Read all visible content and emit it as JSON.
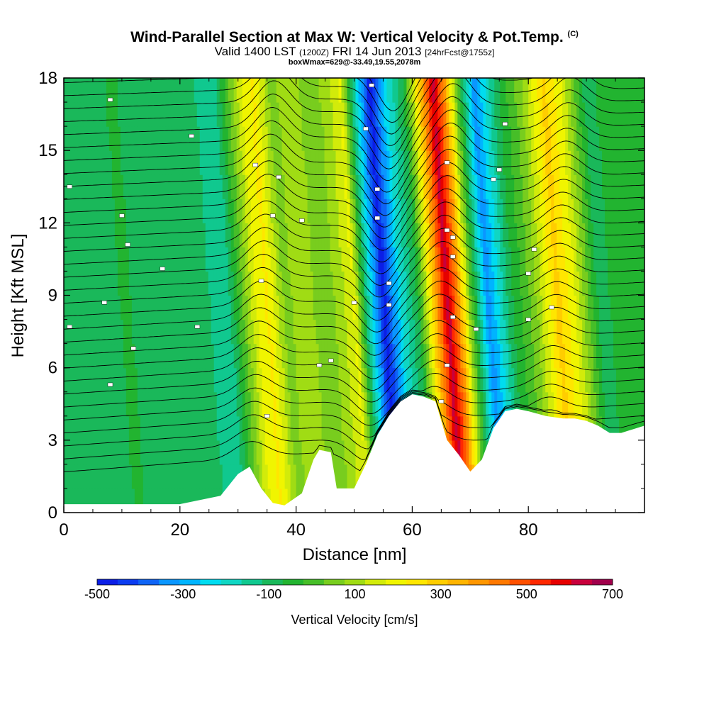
{
  "title": {
    "main": "Wind-Parallel Section at Max W: Vertical Velocity & Pot.Temp.",
    "copyright": "(C)",
    "valid_prefix": "Valid 1400 LST",
    "valid_utc": "(1200Z)",
    "valid_date": "FRI 14 Jun 2013",
    "forecast": "[24hrFcst@1755z]",
    "box_info": "boxWmax=629@-33.49,19.55,2078m"
  },
  "chart_data": {
    "type": "heatmap",
    "xlabel": "Distance [nm]",
    "ylabel": "Height [Kft MSL]",
    "xlim": [
      0,
      100
    ],
    "ylim": [
      0,
      18
    ],
    "xticks": [
      0,
      20,
      40,
      60,
      80
    ],
    "yticks": [
      0,
      3,
      6,
      9,
      12,
      15,
      18
    ],
    "colorbar": {
      "label": "Vertical Velocity [cm/s]",
      "ticks": [
        -500,
        -300,
        -100,
        100,
        300,
        500,
        700
      ],
      "min": -500,
      "max": 700,
      "step": 50,
      "colors": [
        "#0b1ee6",
        "#0b3cf0",
        "#0f64f5",
        "#0a96ff",
        "#00b4ff",
        "#00dcf0",
        "#10d6c3",
        "#10c88f",
        "#1ab85a",
        "#22b430",
        "#46be28",
        "#78cd1e",
        "#a0dc14",
        "#d2eb0a",
        "#f0f500",
        "#ffe600",
        "#ffcd00",
        "#ffb400",
        "#ff9600",
        "#ff7800",
        "#ff5000",
        "#ff2800",
        "#e60000",
        "#c8003c",
        "#a0004b"
      ]
    },
    "velocity_profile": {
      "x": [
        0,
        8,
        10,
        16,
        22,
        28,
        33,
        35,
        38,
        42,
        44,
        47,
        50,
        52,
        55,
        58,
        61,
        64,
        66,
        68,
        70,
        73,
        77,
        81,
        85,
        88,
        92,
        96,
        100
      ],
      "w": [
        -60,
        -90,
        -40,
        -80,
        -60,
        -140,
        200,
        260,
        80,
        150,
        50,
        110,
        210,
        -100,
        -480,
        -200,
        -40,
        380,
        680,
        420,
        60,
        -330,
        -60,
        80,
        320,
        200,
        -60,
        -40,
        -30
      ]
    },
    "terrain": {
      "x": [
        0,
        20,
        27,
        30,
        32,
        34,
        36,
        38,
        41,
        43,
        44,
        46,
        47,
        50,
        52,
        54,
        56,
        58,
        60,
        62,
        64,
        66,
        68,
        70,
        72,
        74,
        76,
        78,
        80,
        83,
        86,
        88,
        90,
        92,
        94,
        96,
        100
      ],
      "height_kft": [
        0.35,
        0.35,
        0.7,
        1.6,
        1.9,
        1.0,
        0.4,
        0.3,
        0.8,
        2.2,
        2.6,
        2.5,
        1.0,
        1.0,
        2.0,
        3.2,
        4.0,
        4.6,
        4.9,
        4.8,
        4.6,
        3.0,
        2.4,
        1.7,
        2.2,
        3.5,
        4.2,
        4.3,
        4.2,
        4.0,
        3.9,
        3.9,
        3.8,
        3.6,
        3.3,
        3.3,
        3.6
      ]
    },
    "contours": {
      "variable": "Potential Temperature",
      "count": 32,
      "wave_centers_nm": [
        34,
        54,
        65,
        85
      ],
      "wave_amplitudes_kft": [
        0.9,
        -1.3,
        1.0,
        0.7
      ]
    },
    "contour_labels": [
      {
        "x": 8,
        "y": 17.1
      },
      {
        "x": 22,
        "y": 15.6
      },
      {
        "x": 33,
        "y": 14.4
      },
      {
        "x": 37,
        "y": 13.9
      },
      {
        "x": 1,
        "y": 13.5
      },
      {
        "x": 10,
        "y": 12.3
      },
      {
        "x": 36,
        "y": 12.3
      },
      {
        "x": 41,
        "y": 12.1
      },
      {
        "x": 11,
        "y": 11.1
      },
      {
        "x": 17,
        "y": 10.1
      },
      {
        "x": 34,
        "y": 9.6
      },
      {
        "x": 7,
        "y": 8.7
      },
      {
        "x": 1,
        "y": 7.7
      },
      {
        "x": 23,
        "y": 7.7
      },
      {
        "x": 12,
        "y": 6.8
      },
      {
        "x": 8,
        "y": 5.3
      },
      {
        "x": 35,
        "y": 4.0
      },
      {
        "x": 44,
        "y": 6.1
      },
      {
        "x": 46,
        "y": 6.3
      },
      {
        "x": 50,
        "y": 8.7
      },
      {
        "x": 52,
        "y": 15.9
      },
      {
        "x": 53,
        "y": 17.7
      },
      {
        "x": 54,
        "y": 13.4
      },
      {
        "x": 54,
        "y": 12.2
      },
      {
        "x": 56,
        "y": 9.5
      },
      {
        "x": 56,
        "y": 8.6
      },
      {
        "x": 66,
        "y": 14.5
      },
      {
        "x": 66,
        "y": 11.7
      },
      {
        "x": 67,
        "y": 11.4
      },
      {
        "x": 67,
        "y": 10.6
      },
      {
        "x": 67,
        "y": 8.1
      },
      {
        "x": 66,
        "y": 6.1
      },
      {
        "x": 65,
        "y": 4.6
      },
      {
        "x": 71,
        "y": 7.6
      },
      {
        "x": 74,
        "y": 13.8
      },
      {
        "x": 75,
        "y": 14.2
      },
      {
        "x": 76,
        "y": 16.1
      },
      {
        "x": 81,
        "y": 10.9
      },
      {
        "x": 80,
        "y": 9.9
      },
      {
        "x": 80,
        "y": 8.0
      },
      {
        "x": 84,
        "y": 8.5
      }
    ]
  }
}
